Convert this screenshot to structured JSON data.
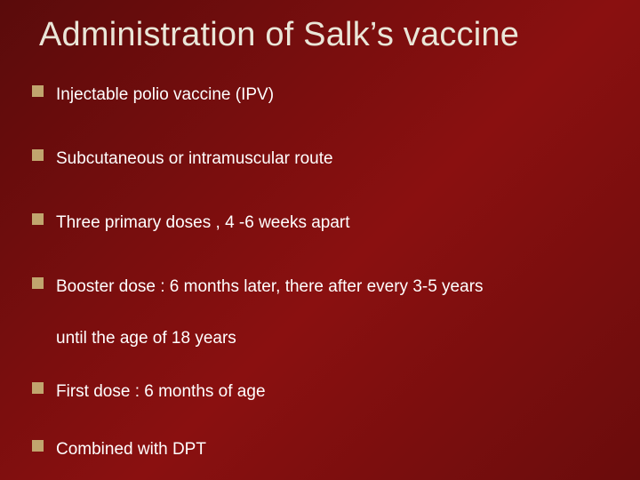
{
  "slide": {
    "title": "Administration of Salk’s vaccine",
    "title_color": "#eae6d8",
    "title_fontsize": 38,
    "background_gradient": [
      "#5a0b0b",
      "#7a0e0e",
      "#8a1010",
      "#6a0c0c"
    ],
    "bullet_marker_color": "#c1a56e",
    "bullet_marker_size": 13,
    "body_text_color": "#ffffff",
    "body_fontsize": 19,
    "bullets": [
      {
        "text": "Injectable polio vaccine (IPV)"
      },
      {
        "text": "Subcutaneous  or intramuscular route"
      },
      {
        "text": "Three primary doses , 4 -6 weeks apart"
      },
      {
        "text": "Booster dose : 6 months later, there after every 3-5 years",
        "continuation": "until the age of 18 years"
      },
      {
        "text": "First dose : 6 months of age"
      },
      {
        "text": "Combined with DPT"
      }
    ]
  }
}
